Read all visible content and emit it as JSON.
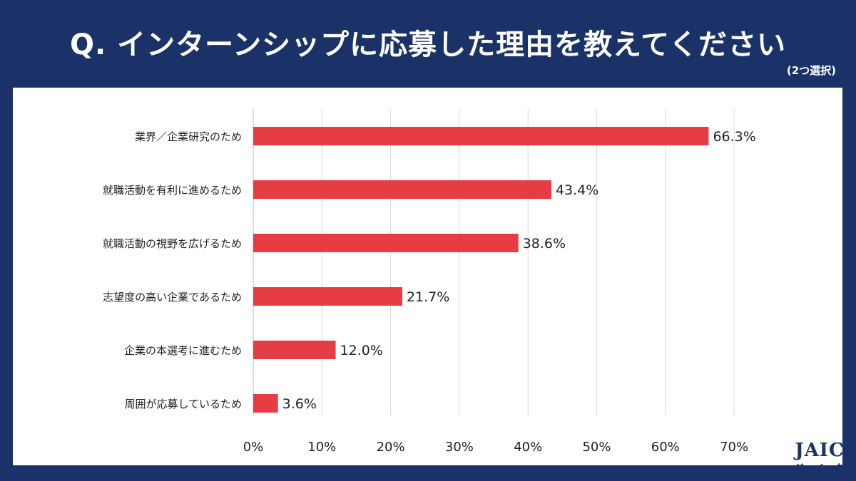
{
  "header": {
    "title": "Q. インターンシップに応募した理由を教えてください",
    "note": "(2つ選択)"
  },
  "logo": {
    "main": "JAIC",
    "kana": "ジェイック"
  },
  "colors": {
    "background": "#1b3268",
    "bar": "#e63c44",
    "grid": "#d9d9d9",
    "text": "#222222"
  },
  "chart_data": {
    "type": "bar",
    "orientation": "horizontal",
    "title": "Q. インターンシップに応募した理由を教えてください",
    "categories": [
      "業界／企業研究のため",
      "就職活動を有利に進めるため",
      "就職活動の視野を広げるため",
      "志望度の高い企業であるため",
      "企業の本選考に進むため",
      "周囲が応募しているため"
    ],
    "values": [
      66.3,
      43.4,
      38.6,
      21.7,
      12.0,
      3.6
    ],
    "value_labels": [
      "66.3%",
      "43.4%",
      "38.6%",
      "21.7%",
      "12.0%",
      "3.6%"
    ],
    "x_ticks": [
      0,
      10,
      20,
      30,
      40,
      50,
      60,
      70
    ],
    "x_tick_labels": [
      "0%",
      "10%",
      "20%",
      "30%",
      "40%",
      "50%",
      "60%",
      "70%"
    ],
    "xlim": [
      0,
      70
    ],
    "xlabel": "",
    "ylabel": "",
    "grid": true
  }
}
